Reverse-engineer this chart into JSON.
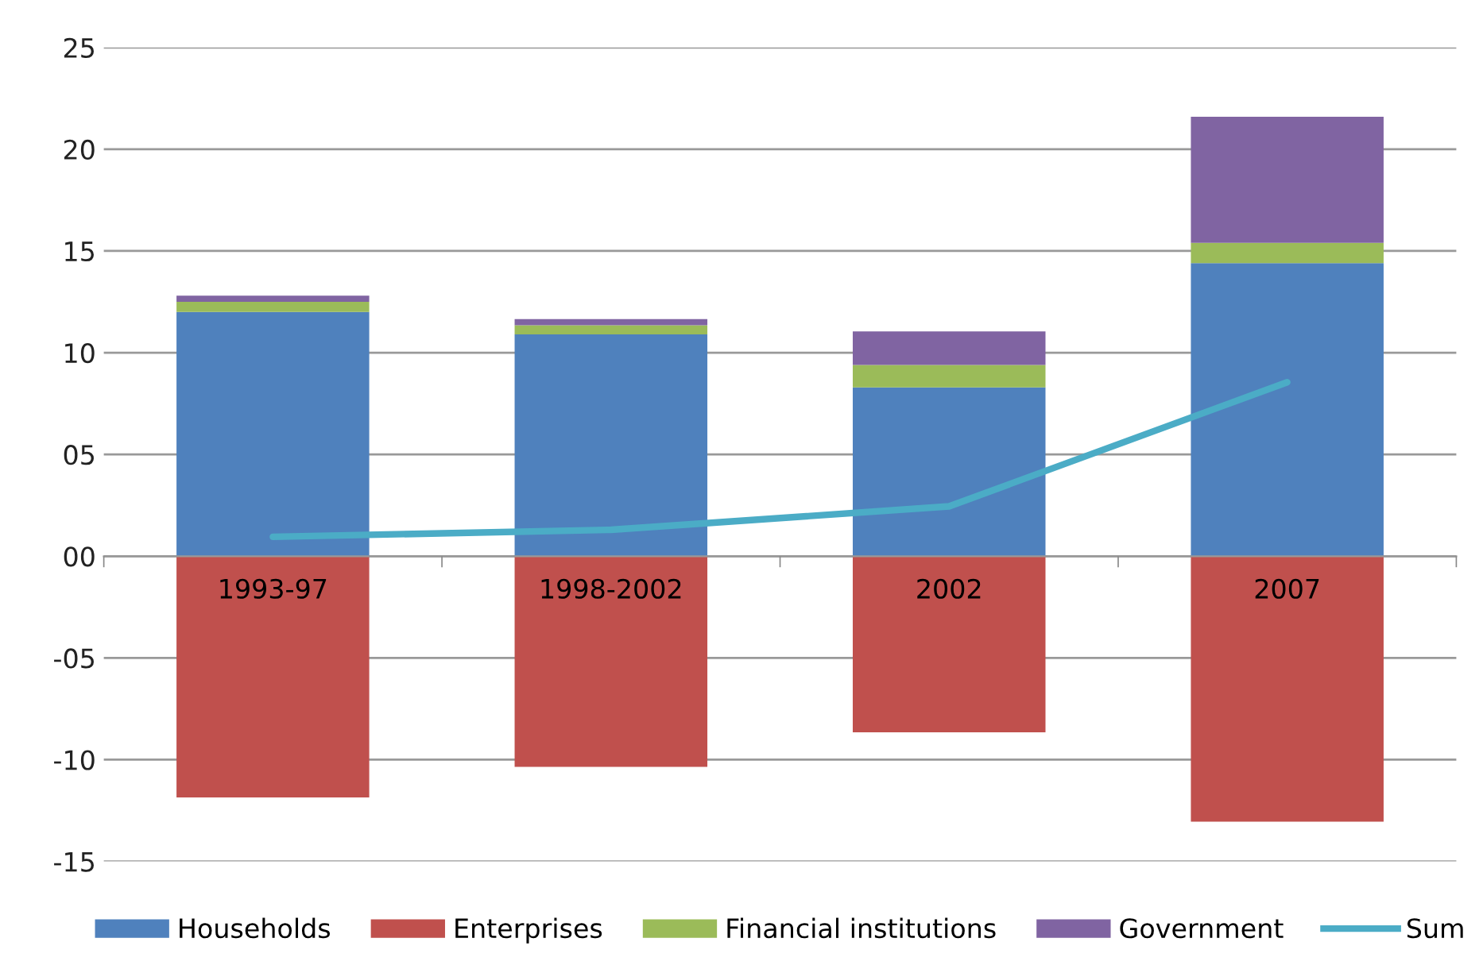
{
  "chart_data": {
    "type": "bar",
    "stacked": true,
    "categories": [
      "1993-97",
      "1998-2002",
      "2002",
      "2007"
    ],
    "series": [
      {
        "name": "Households",
        "color": "#4f81bd",
        "values": [
          12.0,
          10.9,
          8.3,
          14.4
        ]
      },
      {
        "name": "Enterprises",
        "color": "#c0504d",
        "values": [
          -11.85,
          -10.35,
          -8.65,
          -13.05
        ]
      },
      {
        "name": "Financial institutions",
        "color": "#9bbb59",
        "values": [
          0.5,
          0.45,
          1.1,
          1.0
        ]
      },
      {
        "name": "Government",
        "color": "#8064a2",
        "values": [
          0.3,
          0.3,
          1.65,
          6.2
        ]
      },
      {
        "name": "Sum",
        "type": "line",
        "color": "#4bacc6",
        "values": [
          0.95,
          1.3,
          2.45,
          8.55
        ]
      }
    ],
    "ylim": [
      -15,
      25
    ],
    "yticks": [
      {
        "value": -15,
        "label": "-15"
      },
      {
        "value": -10,
        "label": "-10"
      },
      {
        "value": -5,
        "label": "-05"
      },
      {
        "value": 0,
        "label": "00"
      },
      {
        "value": 5,
        "label": "05"
      },
      10,
      15,
      20,
      25
    ],
    "grid": "y",
    "legend": "bottom",
    "marker": "none"
  }
}
